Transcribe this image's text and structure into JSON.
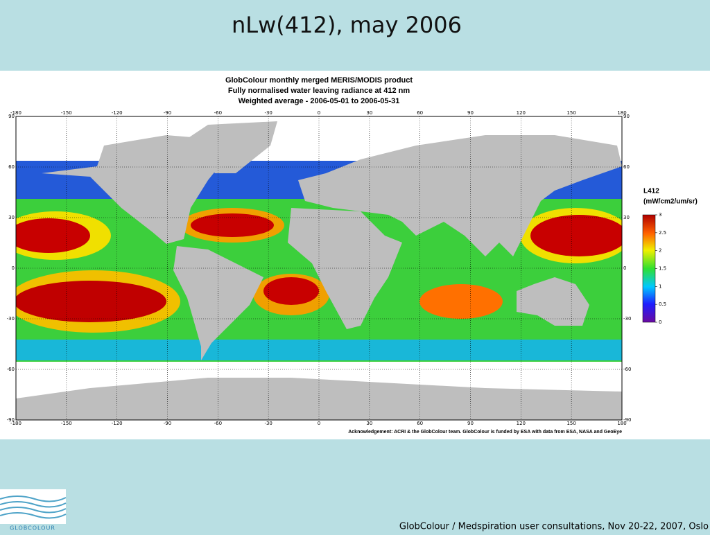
{
  "slide": {
    "title": "nLw(412), may 2006",
    "footer": "GlobColour / Medspiration user consultations, Nov 20-22, 2007, Oslo",
    "logo_text": "GLOBCOLOUR"
  },
  "map": {
    "title_lines": [
      "GlobColour monthly merged MERIS/MODIS product",
      "Fully normalised water leaving radiance at 412 nm",
      "Weighted average - 2006-05-01 to 2006-05-31"
    ],
    "lon_range": [
      -180,
      180
    ],
    "lat_range": [
      -90,
      90
    ],
    "lon_ticks": [
      -180,
      -150,
      -120,
      -90,
      -60,
      -30,
      0,
      30,
      60,
      90,
      120,
      150,
      180
    ],
    "lat_ticks": [
      90,
      60,
      30,
      0,
      -30,
      -60,
      -90
    ],
    "colorbar": {
      "title": "L412",
      "unit": "(mW/cm2/um/sr)",
      "range": [
        0,
        3
      ],
      "ticks": [
        3,
        2.5,
        2,
        1.5,
        1,
        0.5,
        0
      ]
    },
    "acknowledgement": "Acknowledgement: ACRI & the GlobColour team. GlobColour is funded by ESA with data from ESA, NASA and GeoEye"
  }
}
